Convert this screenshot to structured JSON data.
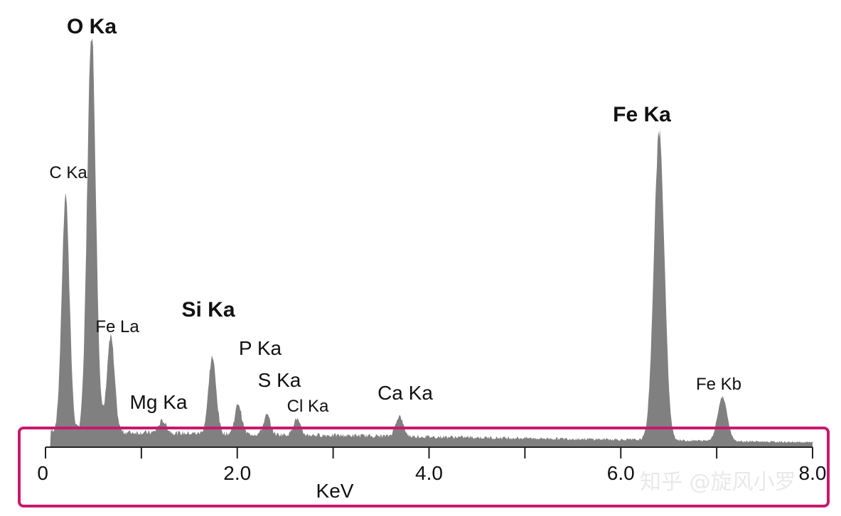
{
  "chart_data": {
    "type": "area",
    "xlabel": "KeV",
    "xlim": [
      0,
      8.0
    ],
    "ylim": [
      0,
      1000
    ],
    "x_ticks": [
      0,
      1,
      2,
      3,
      4,
      5,
      6,
      7,
      8
    ],
    "tick_labels": [
      {
        "x": 0,
        "label": "0"
      },
      {
        "x": 2,
        "label": "2.0"
      },
      {
        "x": 4,
        "label": "4.0"
      },
      {
        "x": 6,
        "label": "6.0"
      },
      {
        "x": 8,
        "label": "8.0"
      }
    ],
    "background": {
      "start": 40,
      "end": 12
    },
    "peaks": [
      {
        "label": "C Ka",
        "center": 0.21,
        "height": 590,
        "width": 0.04,
        "bold": false,
        "size": "small"
      },
      {
        "label": "O Ka",
        "center": 0.48,
        "height": 1000,
        "width": 0.045,
        "bold": true,
        "size": "large"
      },
      {
        "label": "Fe La",
        "center": 0.68,
        "height": 238,
        "width": 0.04,
        "bold": false,
        "size": "small"
      },
      {
        "label": "Mg Ka",
        "center": 1.22,
        "height": 30,
        "width": 0.04,
        "bold": false,
        "size": "medium"
      },
      {
        "label": "Si Ka",
        "center": 1.74,
        "height": 190,
        "width": 0.04,
        "bold": true,
        "size": "large"
      },
      {
        "label": "P Ka",
        "center": 2.01,
        "height": 75,
        "width": 0.035,
        "bold": false,
        "size": "medium"
      },
      {
        "label": "S Ka",
        "center": 2.31,
        "height": 48,
        "width": 0.035,
        "bold": false,
        "size": "medium"
      },
      {
        "label": "Cl Ka",
        "center": 2.62,
        "height": 40,
        "width": 0.035,
        "bold": false,
        "size": "small"
      },
      {
        "label": "Ca Ka",
        "center": 3.69,
        "height": 50,
        "width": 0.04,
        "bold": false,
        "size": "medium"
      },
      {
        "label": "Fe Ka",
        "center": 6.4,
        "height": 765,
        "width": 0.055,
        "bold": true,
        "size": "large"
      },
      {
        "label": "Fe Kb",
        "center": 7.06,
        "height": 110,
        "width": 0.05,
        "bold": false,
        "size": "small"
      }
    ],
    "colors": {
      "fill": "#808080",
      "axis": "#222222",
      "highlight_box": "#c8196e"
    }
  },
  "watermark": "知乎 @旋风小罗"
}
